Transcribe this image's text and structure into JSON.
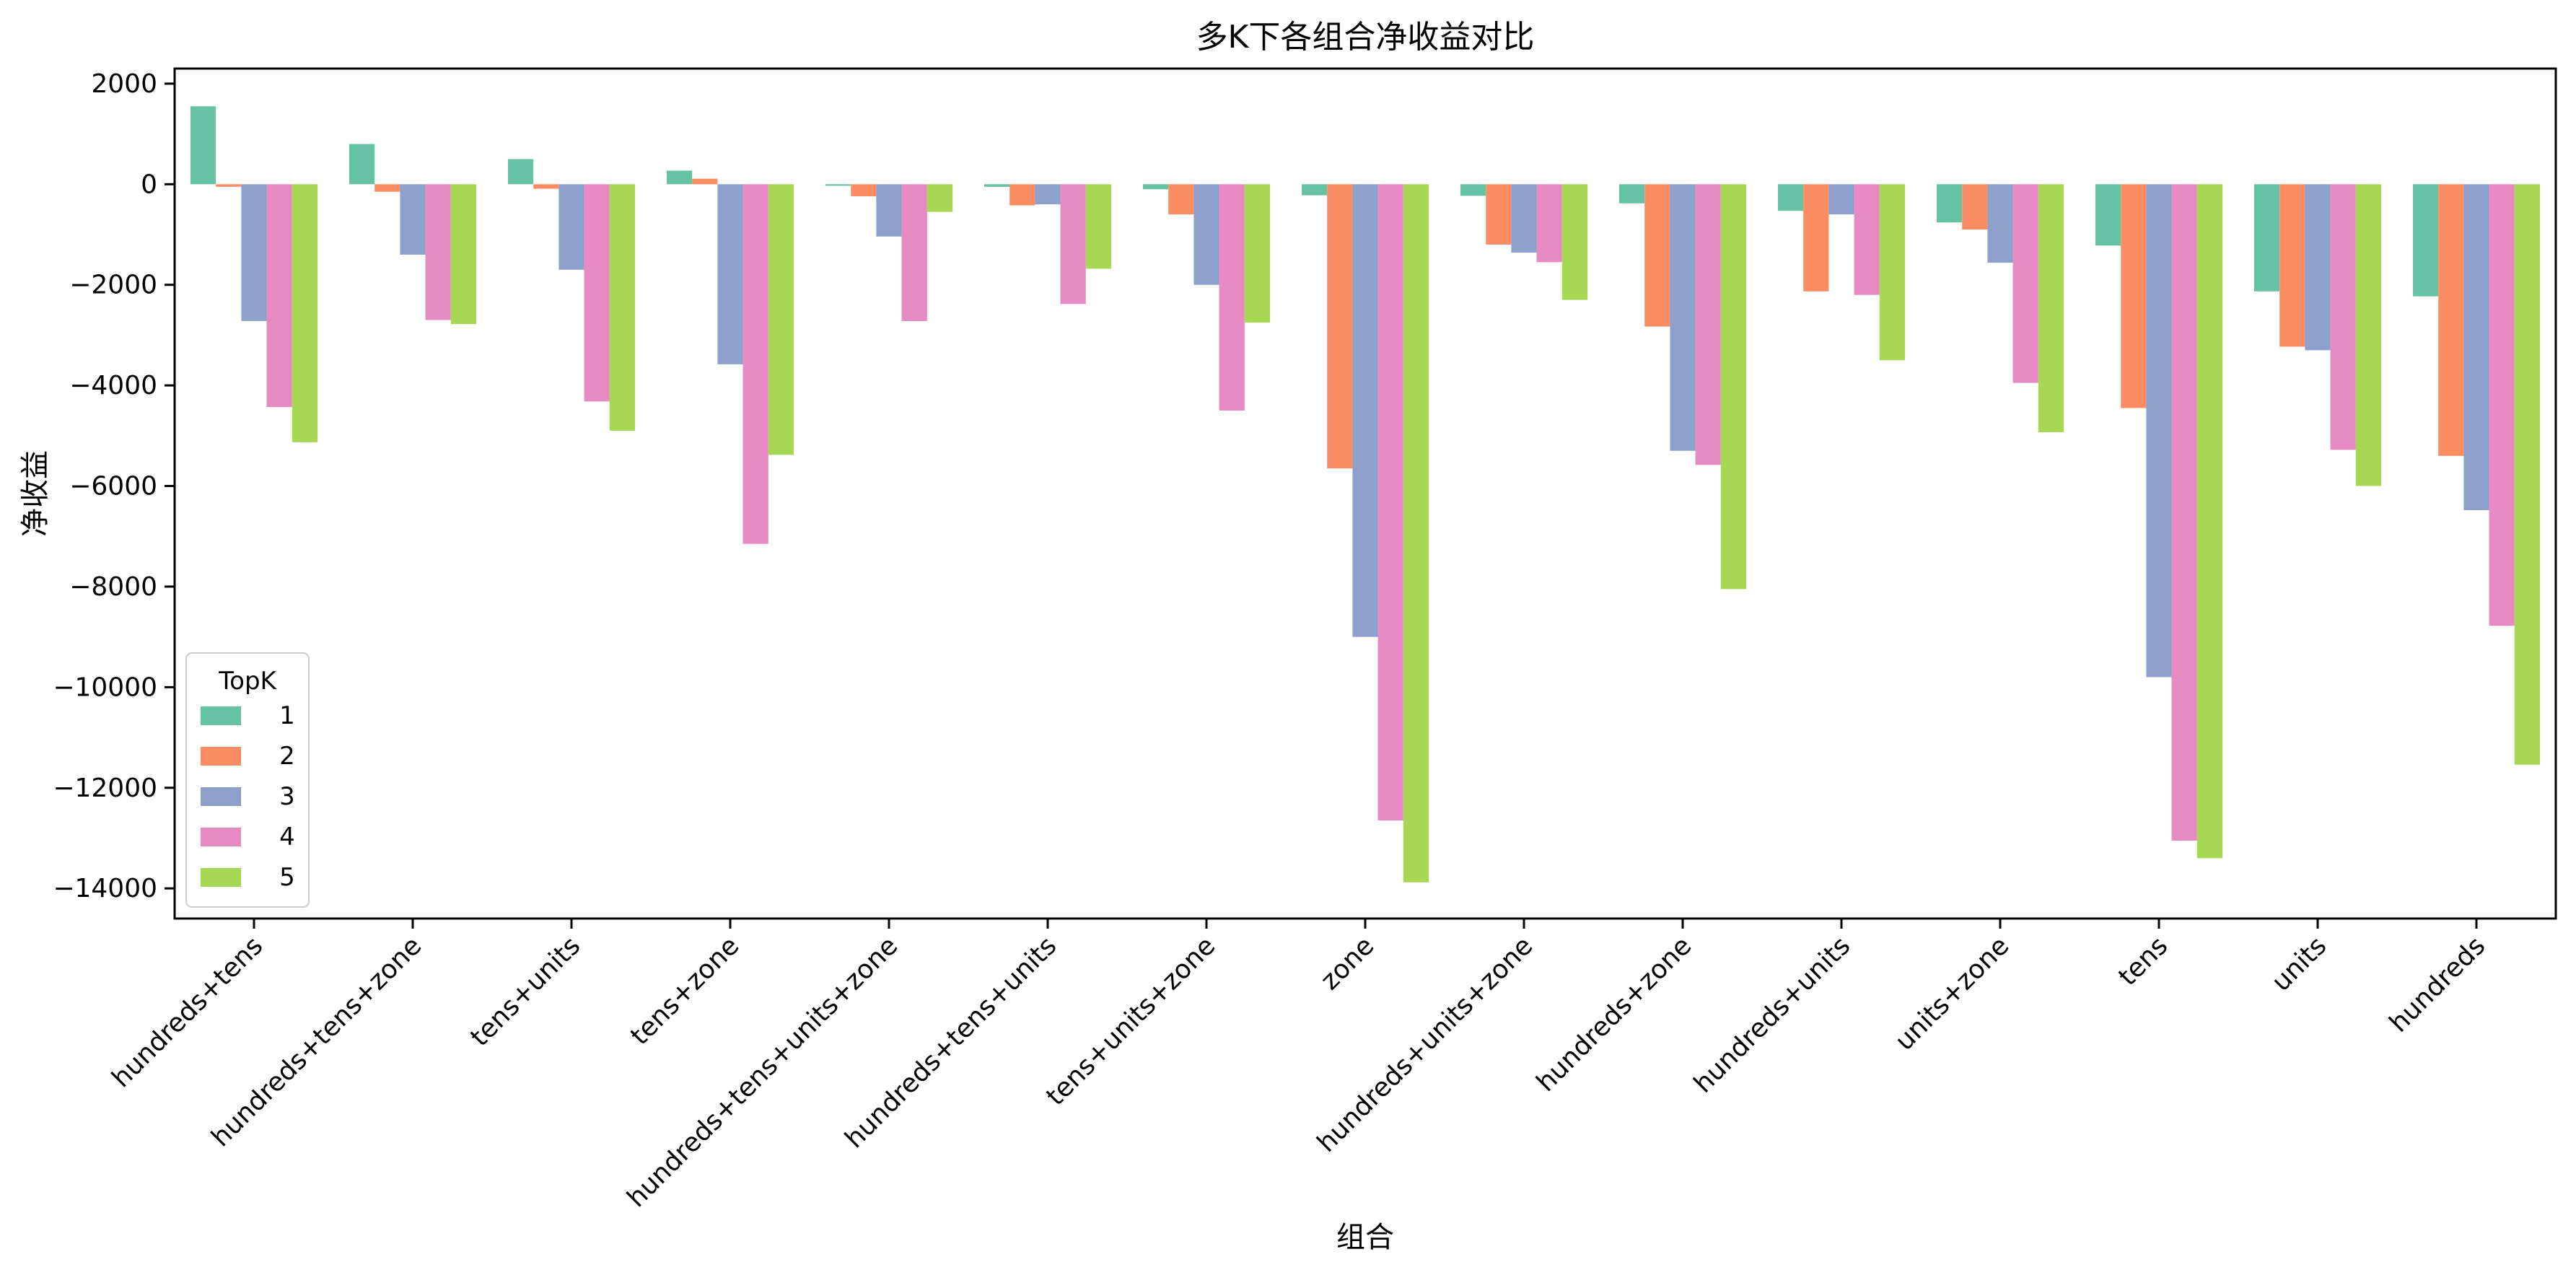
{
  "chart_data": {
    "type": "bar",
    "title": "多K下各组合净收益对比",
    "xlabel": "组合",
    "ylabel": "净收益",
    "ylim": [
      -14600,
      2300
    ],
    "yticks": [
      2000,
      0,
      -2000,
      -4000,
      -6000,
      -8000,
      -10000,
      -12000,
      -14000
    ],
    "ytick_labels": [
      "2000",
      "0",
      "−2000",
      "−4000",
      "−6000",
      "−8000",
      "−10000",
      "−12000",
      "−14000"
    ],
    "grid": false,
    "legend": {
      "title": "TopK",
      "placement": "lower-left"
    },
    "categories": [
      "hundreds+tens",
      "hundreds+tens+zone",
      "tens+units",
      "tens+zone",
      "hundreds+tens+units+zone",
      "hundreds+tens+units",
      "tens+units+zone",
      "zone",
      "hundreds+units+zone",
      "hundreds+zone",
      "hundreds+units",
      "units+zone",
      "tens",
      "units",
      "hundreds"
    ],
    "series": [
      {
        "name": "1",
        "color": "#66c2a5",
        "values": [
          1550,
          800,
          500,
          270,
          -30,
          -50,
          -100,
          -220,
          -230,
          -380,
          -530,
          -760,
          -1220,
          -2130,
          -2230
        ]
      },
      {
        "name": "2",
        "color": "#fc8d62",
        "values": [
          -50,
          -150,
          -90,
          110,
          -240,
          -420,
          -600,
          -5650,
          -1200,
          -2830,
          -2130,
          -900,
          -4450,
          -3230,
          -5400
        ]
      },
      {
        "name": "3",
        "color": "#8da0cb",
        "values": [
          -2720,
          -1400,
          -1700,
          -3580,
          -1040,
          -400,
          -2000,
          -9000,
          -1360,
          -5300,
          -600,
          -1560,
          -9800,
          -3300,
          -6480
        ]
      },
      {
        "name": "4",
        "color": "#e78ac3",
        "values": [
          -4430,
          -2700,
          -4320,
          -7150,
          -2720,
          -2380,
          -4500,
          -12650,
          -1550,
          -5580,
          -2200,
          -3950,
          -13050,
          -5280,
          -8780
        ]
      },
      {
        "name": "5",
        "color": "#a6d854",
        "values": [
          -5130,
          -2780,
          -4900,
          -5380,
          -550,
          -1680,
          -2750,
          -13880,
          -2300,
          -8050,
          -3500,
          -4930,
          -13400,
          -6000,
          -11540
        ]
      }
    ]
  }
}
